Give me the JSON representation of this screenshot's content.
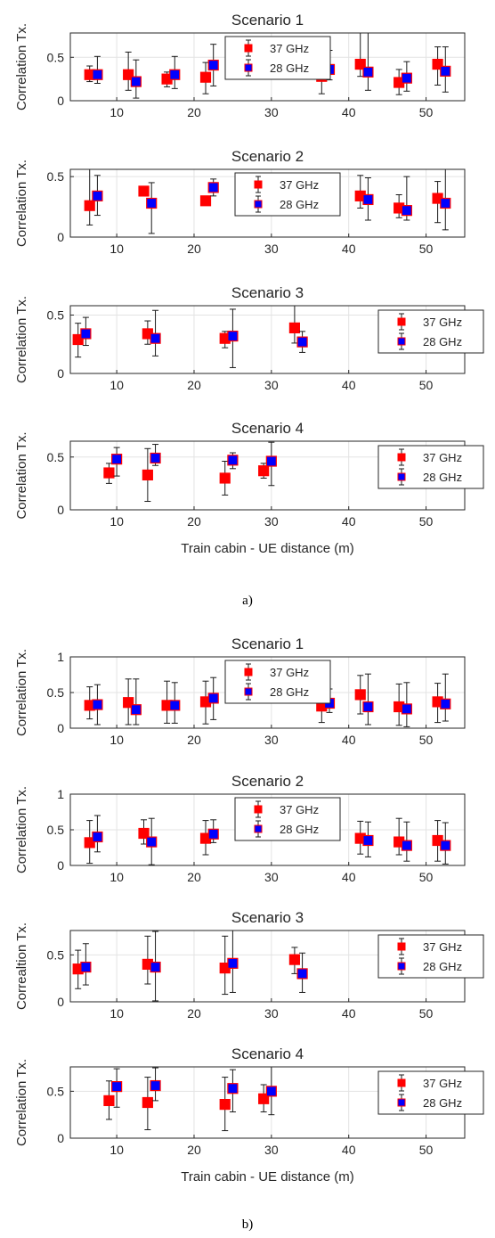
{
  "chart_data": [
    {
      "type": "scatter",
      "figure": "a)",
      "title": "Scenario 1",
      "ylabel": "Correlation Tx.",
      "xlabel": "",
      "xlim": [
        4,
        55
      ],
      "ylim": [
        0,
        0.78
      ],
      "xticks": [
        10,
        20,
        30,
        40,
        50
      ],
      "yticks": [
        0,
        0.5
      ],
      "grid": true,
      "legend_position": "center-left",
      "series": [
        {
          "name": "37 GHz",
          "color": "#ff0000",
          "points": [
            {
              "x": 6.5,
              "y": 0.3,
              "lo": 0.22,
              "hi": 0.4
            },
            {
              "x": 11.5,
              "y": 0.3,
              "lo": 0.12,
              "hi": 0.56
            },
            {
              "x": 16.5,
              "y": 0.25,
              "lo": 0.16,
              "hi": 0.33
            },
            {
              "x": 21.5,
              "y": 0.27,
              "lo": 0.08,
              "hi": 0.44
            },
            {
              "x": 36.5,
              "y": 0.28,
              "lo": 0.08,
              "hi": 0.4
            },
            {
              "x": 41.5,
              "y": 0.42,
              "lo": 0.28,
              "hi": 0.78
            },
            {
              "x": 46.5,
              "y": 0.21,
              "lo": 0.07,
              "hi": 0.36
            },
            {
              "x": 51.5,
              "y": 0.42,
              "lo": 0.18,
              "hi": 0.62
            }
          ]
        },
        {
          "name": "28 GHz",
          "color": "#0000ff",
          "points": [
            {
              "x": 7.5,
              "y": 0.3,
              "lo": 0.2,
              "hi": 0.51
            },
            {
              "x": 12.5,
              "y": 0.22,
              "lo": 0.03,
              "hi": 0.47
            },
            {
              "x": 17.5,
              "y": 0.3,
              "lo": 0.14,
              "hi": 0.51
            },
            {
              "x": 22.5,
              "y": 0.41,
              "lo": 0.17,
              "hi": 0.65
            },
            {
              "x": 37.5,
              "y": 0.36,
              "lo": 0.24,
              "hi": 0.58
            },
            {
              "x": 42.5,
              "y": 0.33,
              "lo": 0.12,
              "hi": 0.78
            },
            {
              "x": 47.5,
              "y": 0.26,
              "lo": 0.11,
              "hi": 0.45
            },
            {
              "x": 52.5,
              "y": 0.34,
              "lo": 0.1,
              "hi": 0.62
            }
          ]
        }
      ]
    },
    {
      "type": "scatter",
      "figure": "a)",
      "title": "Scenario 2",
      "ylabel": "Correlation Tx.",
      "xlabel": "",
      "xlim": [
        4,
        55
      ],
      "ylim": [
        0,
        0.56
      ],
      "xticks": [
        10,
        20,
        30,
        40,
        50
      ],
      "yticks": [
        0,
        0.5
      ],
      "grid": true,
      "legend_position": "top-center",
      "series": [
        {
          "name": "37 GHz",
          "color": "#ff0000",
          "points": [
            {
              "x": 6.5,
              "y": 0.26,
              "lo": 0.1,
              "hi": 0.56
            },
            {
              "x": 13.5,
              "y": 0.38,
              "lo": 0.35,
              "hi": 0.4
            },
            {
              "x": 21.5,
              "y": 0.3,
              "lo": 0.27,
              "hi": 0.33
            },
            {
              "x": 41.5,
              "y": 0.34,
              "lo": 0.24,
              "hi": 0.51
            },
            {
              "x": 46.5,
              "y": 0.24,
              "lo": 0.16,
              "hi": 0.35
            },
            {
              "x": 51.5,
              "y": 0.32,
              "lo": 0.12,
              "hi": 0.46
            }
          ]
        },
        {
          "name": "28 GHz",
          "color": "#0000ff",
          "points": [
            {
              "x": 7.5,
              "y": 0.34,
              "lo": 0.18,
              "hi": 0.51
            },
            {
              "x": 14.5,
              "y": 0.28,
              "lo": 0.03,
              "hi": 0.45
            },
            {
              "x": 22.5,
              "y": 0.41,
              "lo": 0.34,
              "hi": 0.48
            },
            {
              "x": 42.5,
              "y": 0.31,
              "lo": 0.14,
              "hi": 0.49
            },
            {
              "x": 47.5,
              "y": 0.22,
              "lo": 0.14,
              "hi": 0.5
            },
            {
              "x": 52.5,
              "y": 0.28,
              "lo": 0.06,
              "hi": 0.56
            }
          ]
        }
      ]
    },
    {
      "type": "scatter",
      "figure": "a)",
      "title": "Scenario 3",
      "ylabel": "Correlation Tx.",
      "xlabel": "",
      "xlim": [
        4,
        55
      ],
      "ylim": [
        0,
        0.58
      ],
      "xticks": [
        10,
        20,
        30,
        40,
        50
      ],
      "yticks": [
        0,
        0.5
      ],
      "grid": true,
      "legend_position": "top-right",
      "series": [
        {
          "name": "37 GHz",
          "color": "#ff0000",
          "points": [
            {
              "x": 5,
              "y": 0.29,
              "lo": 0.14,
              "hi": 0.43
            },
            {
              "x": 14,
              "y": 0.34,
              "lo": 0.25,
              "hi": 0.45
            },
            {
              "x": 24,
              "y": 0.3,
              "lo": 0.22,
              "hi": 0.36
            },
            {
              "x": 33,
              "y": 0.39,
              "lo": 0.26,
              "hi": 0.58
            }
          ]
        },
        {
          "name": "28 GHz",
          "color": "#0000ff",
          "points": [
            {
              "x": 6,
              "y": 0.34,
              "lo": 0.24,
              "hi": 0.48
            },
            {
              "x": 15,
              "y": 0.3,
              "lo": 0.15,
              "hi": 0.54
            },
            {
              "x": 25,
              "y": 0.32,
              "lo": 0.05,
              "hi": 0.55
            },
            {
              "x": 34,
              "y": 0.27,
              "lo": 0.18,
              "hi": 0.36
            }
          ]
        }
      ]
    },
    {
      "type": "scatter",
      "figure": "a)",
      "title": "Scenario 4",
      "ylabel": "Correlation Tx.",
      "xlabel": "Train cabin - UE distance (m)",
      "xlim": [
        4,
        55
      ],
      "ylim": [
        0,
        0.65
      ],
      "xticks": [
        10,
        20,
        30,
        40,
        50
      ],
      "yticks": [
        0,
        0.5
      ],
      "grid": true,
      "legend_position": "top-right",
      "series": [
        {
          "name": "37 GHz",
          "color": "#ff0000",
          "points": [
            {
              "x": 9,
              "y": 0.35,
              "lo": 0.25,
              "hi": 0.44
            },
            {
              "x": 14,
              "y": 0.33,
              "lo": 0.08,
              "hi": 0.58
            },
            {
              "x": 24,
              "y": 0.3,
              "lo": 0.14,
              "hi": 0.46
            },
            {
              "x": 29,
              "y": 0.37,
              "lo": 0.3,
              "hi": 0.44
            }
          ]
        },
        {
          "name": "28 GHz",
          "color": "#0000ff",
          "points": [
            {
              "x": 10,
              "y": 0.48,
              "lo": 0.32,
              "hi": 0.59
            },
            {
              "x": 15,
              "y": 0.49,
              "lo": 0.42,
              "hi": 0.62
            },
            {
              "x": 25,
              "y": 0.47,
              "lo": 0.39,
              "hi": 0.54
            },
            {
              "x": 30,
              "y": 0.46,
              "lo": 0.23,
              "hi": 0.64
            }
          ]
        }
      ]
    },
    {
      "type": "scatter",
      "figure": "b)",
      "title": "Scenario 1",
      "ylabel": "Correlation Tx.",
      "xlabel": "",
      "xlim": [
        4,
        55
      ],
      "ylim": [
        0,
        1
      ],
      "xticks": [
        10,
        20,
        30,
        40,
        50
      ],
      "yticks": [
        0,
        0.5,
        1
      ],
      "grid": true,
      "legend_position": "center-left",
      "series": [
        {
          "name": "37 GHz",
          "color": "#ff0000",
          "points": [
            {
              "x": 6.5,
              "y": 0.32,
              "lo": 0.13,
              "hi": 0.58
            },
            {
              "x": 11.5,
              "y": 0.36,
              "lo": 0.05,
              "hi": 0.69
            },
            {
              "x": 16.5,
              "y": 0.32,
              "lo": 0.07,
              "hi": 0.66
            },
            {
              "x": 21.5,
              "y": 0.37,
              "lo": 0.06,
              "hi": 0.66
            },
            {
              "x": 36.5,
              "y": 0.31,
              "lo": 0.08,
              "hi": 0.53
            },
            {
              "x": 41.5,
              "y": 0.47,
              "lo": 0.2,
              "hi": 0.74
            },
            {
              "x": 46.5,
              "y": 0.3,
              "lo": 0.04,
              "hi": 0.62
            },
            {
              "x": 51.5,
              "y": 0.37,
              "lo": 0.08,
              "hi": 0.63
            }
          ]
        },
        {
          "name": "28 GHz",
          "color": "#0000ff",
          "points": [
            {
              "x": 7.5,
              "y": 0.33,
              "lo": 0.05,
              "hi": 0.61
            },
            {
              "x": 12.5,
              "y": 0.26,
              "lo": 0.05,
              "hi": 0.69
            },
            {
              "x": 17.5,
              "y": 0.32,
              "lo": 0.07,
              "hi": 0.64
            },
            {
              "x": 22.5,
              "y": 0.42,
              "lo": 0.12,
              "hi": 0.71
            },
            {
              "x": 37.5,
              "y": 0.35,
              "lo": 0.22,
              "hi": 0.55
            },
            {
              "x": 42.5,
              "y": 0.3,
              "lo": 0.05,
              "hi": 0.76
            },
            {
              "x": 47.5,
              "y": 0.27,
              "lo": 0.02,
              "hi": 0.64
            },
            {
              "x": 52.5,
              "y": 0.34,
              "lo": 0.1,
              "hi": 0.76
            }
          ]
        }
      ]
    },
    {
      "type": "scatter",
      "figure": "b)",
      "title": "Scenario 2",
      "ylabel": "Correlation Tx.",
      "xlabel": "",
      "xlim": [
        4,
        55
      ],
      "ylim": [
        0,
        1
      ],
      "xticks": [
        10,
        20,
        30,
        40,
        50
      ],
      "yticks": [
        0,
        0.5,
        1
      ],
      "grid": true,
      "legend_position": "top-center",
      "series": [
        {
          "name": "37 GHz",
          "color": "#ff0000",
          "points": [
            {
              "x": 6.5,
              "y": 0.32,
              "lo": 0.03,
              "hi": 0.63
            },
            {
              "x": 13.5,
              "y": 0.45,
              "lo": 0.3,
              "hi": 0.64
            },
            {
              "x": 21.5,
              "y": 0.38,
              "lo": 0.15,
              "hi": 0.63
            },
            {
              "x": 41.5,
              "y": 0.38,
              "lo": 0.16,
              "hi": 0.62
            },
            {
              "x": 46.5,
              "y": 0.33,
              "lo": 0.15,
              "hi": 0.66
            },
            {
              "x": 51.5,
              "y": 0.35,
              "lo": 0.06,
              "hi": 0.63
            }
          ]
        },
        {
          "name": "28 GHz",
          "color": "#0000ff",
          "points": [
            {
              "x": 7.5,
              "y": 0.4,
              "lo": 0.19,
              "hi": 0.7
            },
            {
              "x": 14.5,
              "y": 0.33,
              "lo": 0.01,
              "hi": 0.66
            },
            {
              "x": 22.5,
              "y": 0.44,
              "lo": 0.32,
              "hi": 0.64
            },
            {
              "x": 42.5,
              "y": 0.35,
              "lo": 0.12,
              "hi": 0.61
            },
            {
              "x": 47.5,
              "y": 0.28,
              "lo": 0.06,
              "hi": 0.61
            },
            {
              "x": 52.5,
              "y": 0.28,
              "lo": 0.02,
              "hi": 0.6
            }
          ]
        }
      ]
    },
    {
      "type": "scatter",
      "figure": "b)",
      "title": "Scenario 3",
      "ylabel": "Correaltion Tx.",
      "xlabel": "",
      "xlim": [
        4,
        55
      ],
      "ylim": [
        0,
        0.76
      ],
      "xticks": [
        10,
        20,
        30,
        40,
        50
      ],
      "yticks": [
        0,
        0.5
      ],
      "grid": true,
      "legend_position": "top-right",
      "series": [
        {
          "name": "37 GHz",
          "color": "#ff0000",
          "points": [
            {
              "x": 5,
              "y": 0.35,
              "lo": 0.14,
              "hi": 0.55
            },
            {
              "x": 14,
              "y": 0.4,
              "lo": 0.19,
              "hi": 0.7
            },
            {
              "x": 24,
              "y": 0.36,
              "lo": 0.08,
              "hi": 0.7
            },
            {
              "x": 33,
              "y": 0.45,
              "lo": 0.3,
              "hi": 0.58
            }
          ]
        },
        {
          "name": "28 GHz",
          "color": "#0000ff",
          "points": [
            {
              "x": 6,
              "y": 0.37,
              "lo": 0.18,
              "hi": 0.62
            },
            {
              "x": 15,
              "y": 0.37,
              "lo": 0.01,
              "hi": 0.75
            },
            {
              "x": 25,
              "y": 0.41,
              "lo": 0.1,
              "hi": 0.76
            },
            {
              "x": 34,
              "y": 0.3,
              "lo": 0.1,
              "hi": 0.52
            }
          ]
        }
      ]
    },
    {
      "type": "scatter",
      "figure": "b)",
      "title": "Scenario 4",
      "ylabel": "Correlation Tx.",
      "xlabel": "Train cabin - UE distance (m)",
      "xlim": [
        4,
        55
      ],
      "ylim": [
        0,
        0.76
      ],
      "xticks": [
        10,
        20,
        30,
        40,
        50
      ],
      "yticks": [
        0,
        0.5
      ],
      "grid": true,
      "legend_position": "top-right",
      "series": [
        {
          "name": "37 GHz",
          "color": "#ff0000",
          "points": [
            {
              "x": 9,
              "y": 0.4,
              "lo": 0.2,
              "hi": 0.61
            },
            {
              "x": 14,
              "y": 0.38,
              "lo": 0.09,
              "hi": 0.65
            },
            {
              "x": 24,
              "y": 0.36,
              "lo": 0.08,
              "hi": 0.65
            },
            {
              "x": 29,
              "y": 0.42,
              "lo": 0.28,
              "hi": 0.57
            }
          ]
        },
        {
          "name": "28 GHz",
          "color": "#0000ff",
          "points": [
            {
              "x": 10,
              "y": 0.55,
              "lo": 0.33,
              "hi": 0.74
            },
            {
              "x": 15,
              "y": 0.56,
              "lo": 0.4,
              "hi": 0.75
            },
            {
              "x": 25,
              "y": 0.53,
              "lo": 0.28,
              "hi": 0.73
            },
            {
              "x": 30,
              "y": 0.5,
              "lo": 0.25,
              "hi": 0.76
            }
          ]
        }
      ]
    }
  ],
  "captions": {
    "a": "a)",
    "b": "b)"
  }
}
